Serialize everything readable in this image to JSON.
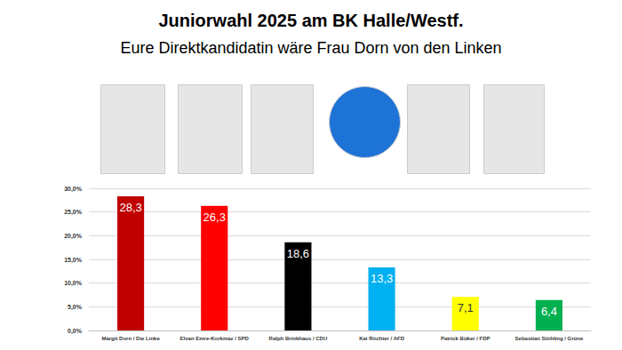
{
  "chart_data": {
    "type": "bar",
    "title": "Juniorwahl 2025 am BK Halle/Westf.",
    "subtitle": "Eure Direktkandidatin wäre Frau Dorn von den Linken",
    "categories": [
      "Margit Dorn / Die Linke",
      "Elvan Emre-Korkmaz / SPD",
      "Ralph Brinkhaus / CDU",
      "Kai Röchter / AFD",
      "Patrick Büker / FDP",
      "Sebastian Stöhling / Grüne"
    ],
    "values": [
      28.3,
      26.3,
      18.6,
      13.3,
      7.1,
      6.4
    ],
    "value_labels": [
      "28,3",
      "26,3",
      "18,6",
      "13,3",
      "7,1",
      "6,4"
    ],
    "colors": [
      "#c00000",
      "#ff0000",
      "#000000",
      "#00b0f0",
      "#ffff00",
      "#00b050"
    ],
    "ylim": [
      0,
      30
    ],
    "yticks": [
      {
        "value": 0,
        "label": "0,0%"
      },
      {
        "value": 5,
        "label": "5,0%"
      },
      {
        "value": 10,
        "label": "10,0%"
      },
      {
        "value": 15,
        "label": "15,0%"
      },
      {
        "value": 20,
        "label": "20,0%"
      },
      {
        "value": 25,
        "label": "25,0%"
      },
      {
        "value": 30,
        "label": "30,0%"
      }
    ],
    "grid": true,
    "data_labels": true
  }
}
